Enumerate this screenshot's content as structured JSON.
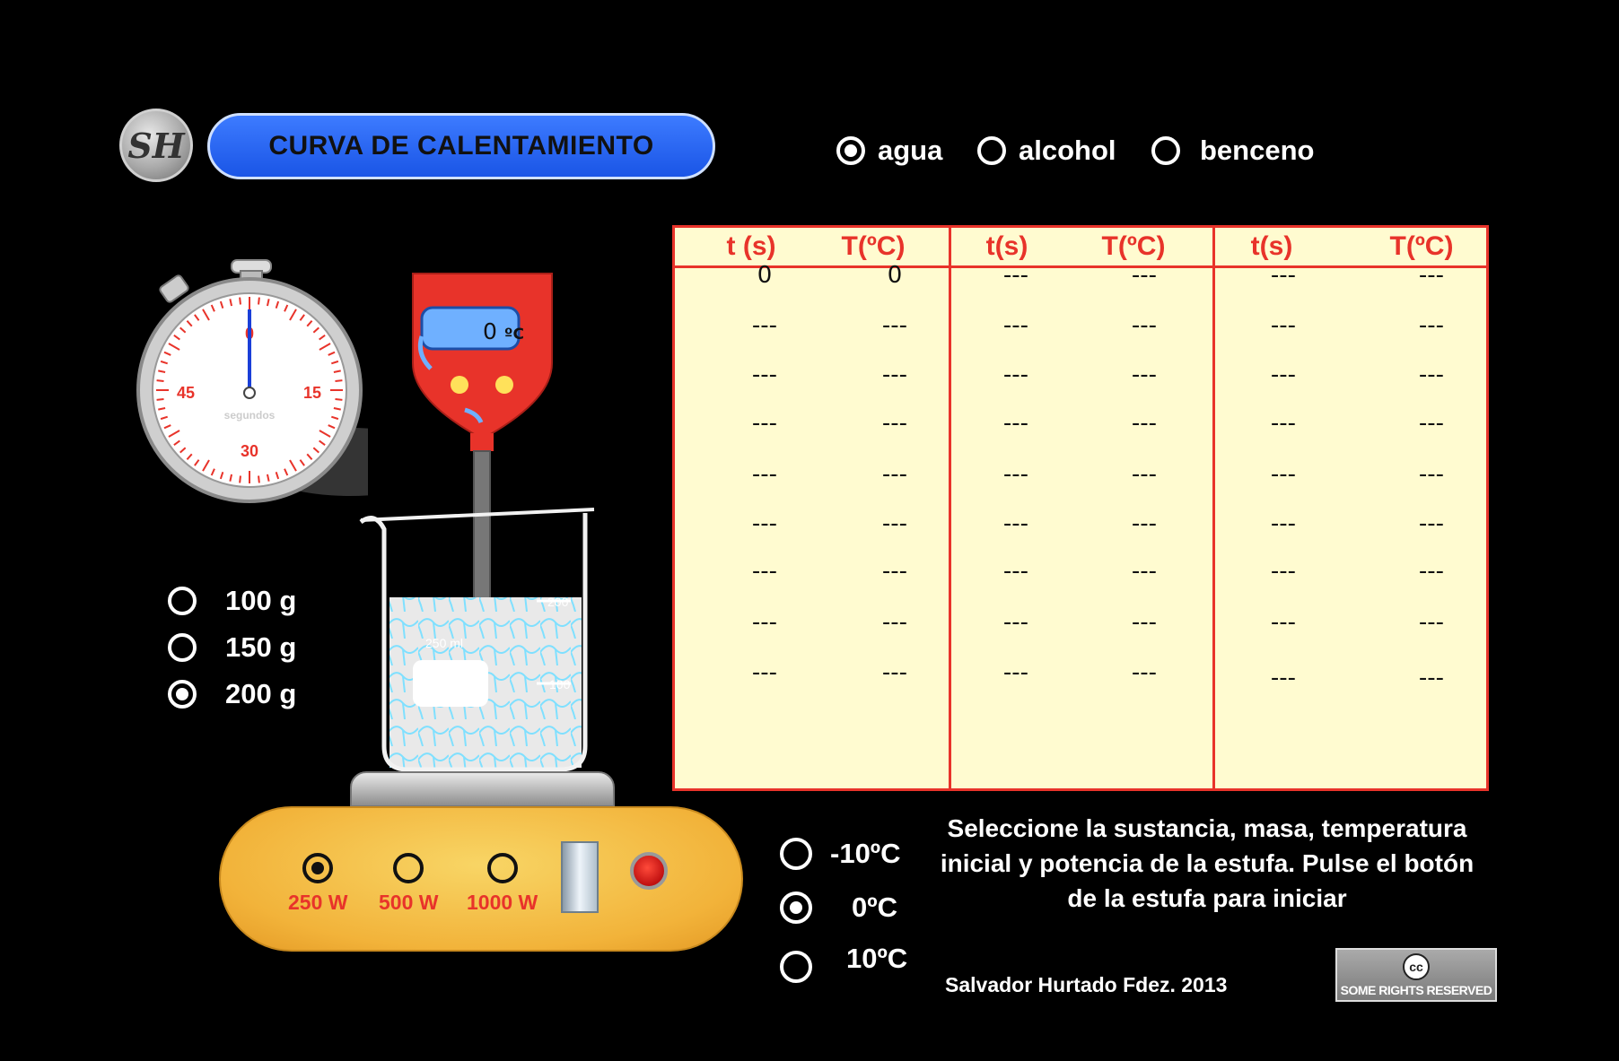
{
  "logo": {
    "monogram": "SH"
  },
  "title": "CURVA DE CALENTAMIENTO",
  "substances": [
    {
      "label": "agua",
      "selected": true
    },
    {
      "label": "alcohol",
      "selected": false
    },
    {
      "label": "benceno",
      "selected": false
    }
  ],
  "masses": [
    {
      "label": "100 g",
      "selected": false
    },
    {
      "label": "150 g",
      "selected": false
    },
    {
      "label": "200 g",
      "selected": true
    }
  ],
  "initial_temps": [
    {
      "label": "-10ºC",
      "selected": false
    },
    {
      "label": "0ºC",
      "selected": true
    },
    {
      "label": "10ºC",
      "selected": false
    }
  ],
  "powers": [
    {
      "label": "250 W",
      "selected": true
    },
    {
      "label": "500 W",
      "selected": false
    },
    {
      "label": "1000 W",
      "selected": false
    }
  ],
  "stopwatch": {
    "marks": [
      "0",
      "15",
      "30",
      "45"
    ],
    "unit": "segundos"
  },
  "thermometer": {
    "value": "0",
    "unit": "ºC"
  },
  "beaker": {
    "marks": [
      "200",
      "250 ml",
      "100"
    ]
  },
  "table": {
    "headers": [
      "t (s)",
      "T(ºC)",
      "t(s)",
      "T(ºC)",
      "t(s)",
      "T(ºC)"
    ],
    "rows": [
      [
        "0",
        "0",
        "---",
        "---",
        "---",
        "---"
      ],
      [
        "---",
        "---",
        "---",
        "---",
        "---",
        "---"
      ],
      [
        "---",
        "---",
        "---",
        "---",
        "---",
        "---"
      ],
      [
        "---",
        "---",
        "---",
        "---",
        "---",
        "---"
      ],
      [
        "---",
        "---",
        "---",
        "---",
        "---",
        "---"
      ],
      [
        "---",
        "---",
        "---",
        "---",
        "---",
        "---"
      ],
      [
        "---",
        "---",
        "---",
        "---",
        "---",
        "---"
      ],
      [
        "---",
        "---",
        "---",
        "---",
        "---",
        "---"
      ],
      [
        "---",
        "---",
        "---",
        "---",
        "---",
        "---"
      ]
    ]
  },
  "instructions": "Seleccione la sustancia, masa, temperatura inicial y potencia de la estufa. Pulse el botón de la estufa para iniciar",
  "author": "Salvador Hurtado Fdez. 2013",
  "license": {
    "icon_text": "cc",
    "text": "SOME RIGHTS RESERVED"
  },
  "colors": {
    "accent_red": "#e8332a",
    "title_blue": "#2b66f5",
    "table_bg": "#fffbd0",
    "stove_orange": "#f2b33a"
  }
}
